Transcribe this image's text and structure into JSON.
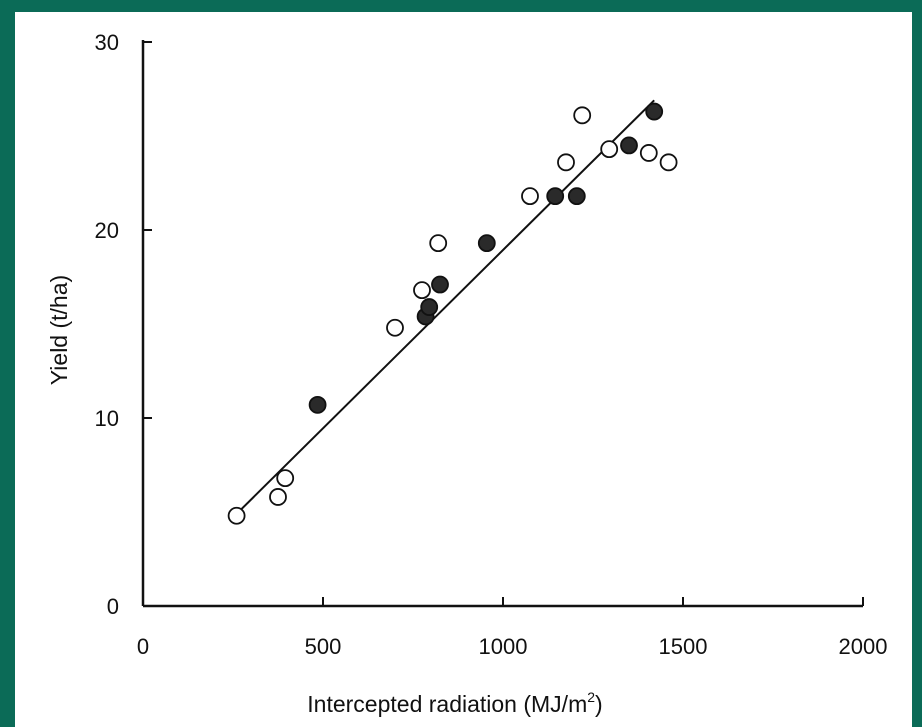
{
  "colors": {
    "frame": "#0b6b57",
    "plot_bg": "#ffffff",
    "ink": "#111111"
  },
  "chart_data": {
    "type": "scatter",
    "xlabel": "Intercepted radiation (MJ/m",
    "xlabel_sup": "2",
    "xlabel_close": ")",
    "ylabel": "Yield (t/ha)",
    "xlim": [
      0,
      2000
    ],
    "ylim": [
      0,
      30
    ],
    "xticks": [
      0,
      500,
      1000,
      1500,
      2000
    ],
    "yticks": [
      0,
      10,
      20,
      30
    ],
    "grid": false,
    "series": [
      {
        "marker": "open-circle",
        "points": [
          [
            260,
            4.8
          ],
          [
            375,
            5.8
          ],
          [
            395,
            6.8
          ],
          [
            700,
            14.8
          ],
          [
            775,
            16.8
          ],
          [
            820,
            19.3
          ],
          [
            1075,
            21.8
          ],
          [
            1175,
            23.6
          ],
          [
            1220,
            26.1
          ],
          [
            1295,
            24.3
          ],
          [
            1405,
            24.1
          ],
          [
            1460,
            23.6
          ]
        ]
      },
      {
        "marker": "filled-circle",
        "points": [
          [
            485,
            10.7
          ],
          [
            785,
            15.4
          ],
          [
            795,
            15.9
          ],
          [
            825,
            17.1
          ],
          [
            955,
            19.3
          ],
          [
            1145,
            21.8
          ],
          [
            1205,
            21.8
          ],
          [
            1350,
            24.5
          ],
          [
            1420,
            26.3
          ]
        ]
      }
    ],
    "fit_line": [
      [
        260,
        4.9
      ],
      [
        1420,
        26.9
      ]
    ]
  }
}
